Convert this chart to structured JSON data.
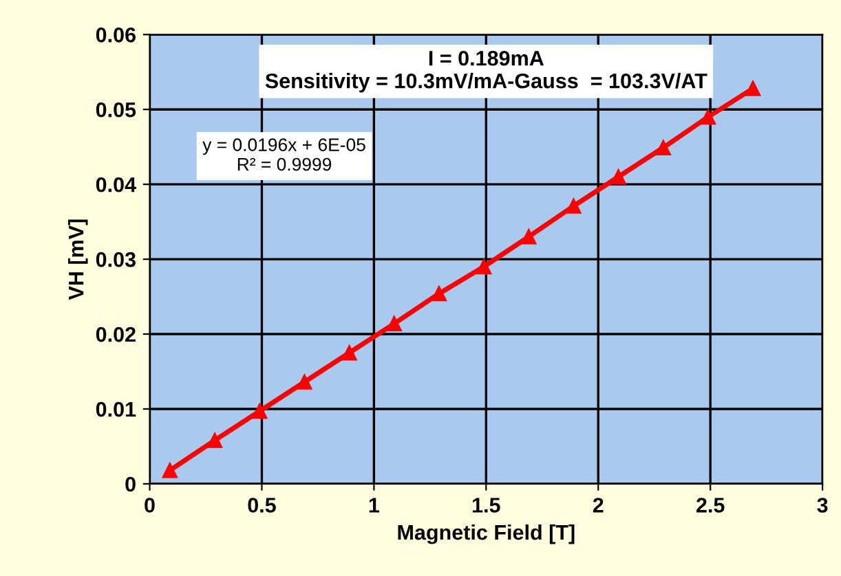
{
  "chart_data": {
    "type": "line",
    "xlabel": "Magnetic Field [T]",
    "ylabel": "VH [mV]",
    "x": [
      0.09,
      0.29,
      0.49,
      0.69,
      0.89,
      1.09,
      1.29,
      1.49,
      1.69,
      1.89,
      2.09,
      2.29,
      2.49,
      2.69
    ],
    "series": [
      {
        "color": "#ff0000",
        "values": [
          0.0018,
          0.0058,
          0.0097,
          0.0136,
          0.0175,
          0.0214,
          0.0254,
          0.029,
          0.033,
          0.0371,
          0.041,
          0.0449,
          0.049,
          0.0528
        ]
      }
    ],
    "xlim": [
      0,
      3
    ],
    "ylim": [
      0,
      0.06
    ],
    "xticks": [
      0,
      0.5,
      1,
      1.5,
      2,
      2.5,
      3
    ],
    "yticks": [
      0,
      0.01,
      0.02,
      0.03,
      0.04,
      0.05,
      0.06
    ],
    "annotations": [
      "I = 0.189mA\nSensitivity = 10.3mV/mA-Gauss  = 103.3V/AT",
      "y = 0.0196x + 6E-05\nR² = 0.9999"
    ],
    "grid": true,
    "marker": "triangle",
    "line_style": "solid"
  }
}
